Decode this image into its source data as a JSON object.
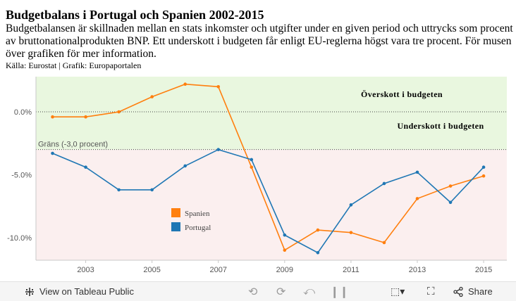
{
  "header": {
    "title": "Budgetbalans i Portugal och Spanien 2002-2015",
    "description": "Budgetbalansen är skillnaden mellan en stats inkomster och utgifter under en given period och uttrycks som procent av bruttonationalprodukten BNP. Ett underskott i budgeten får enligt EU-reglerna högst vara tre procent. För musen över grafiken för mer information.",
    "source": "Källa: Eurostat | Grafik: Europaportalen"
  },
  "chart_data": {
    "type": "line",
    "title": "Budgetbalans i Portugal och Spanien 2002-2015",
    "xlabel": "",
    "ylabel": "",
    "x": [
      2002,
      2003,
      2004,
      2005,
      2006,
      2007,
      2008,
      2009,
      2010,
      2011,
      2012,
      2013,
      2014,
      2015
    ],
    "xticks": [
      2003,
      2005,
      2007,
      2009,
      2011,
      2013,
      2015
    ],
    "xlim": [
      2001.5,
      2015.7
    ],
    "ylim": [
      -11.8,
      2.8
    ],
    "yticks": [
      0,
      -5,
      -10
    ],
    "ytick_labels": [
      "0.0%",
      "-5.0%",
      "-10.0%"
    ],
    "series": [
      {
        "name": "Spanien",
        "color": "#ff7f0e",
        "values": [
          -0.4,
          -0.4,
          0.0,
          1.2,
          2.2,
          2.0,
          -4.4,
          -11.0,
          -9.4,
          -9.6,
          -10.4,
          -6.9,
          -5.9,
          -5.1
        ]
      },
      {
        "name": "Portugal",
        "color": "#1f77b4",
        "values": [
          -3.3,
          -4.4,
          -6.2,
          -6.2,
          -4.3,
          -3.0,
          -3.8,
          -9.8,
          -11.2,
          -7.4,
          -5.7,
          -4.8,
          -7.2,
          -4.4
        ]
      }
    ],
    "threshold": {
      "value": -3.0,
      "label": "Gräns (-3,0 procent)"
    },
    "annotations": {
      "surplus": "Överskott i budgeten",
      "deficit": "Underskott i budgeten"
    },
    "legend_position": "center-left",
    "colors": {
      "surplus_band": "#e9f7df",
      "deficit_band": "#fbefef"
    }
  },
  "toolbar": {
    "view_label": "View on Tableau Public",
    "share_label": "Share",
    "icons": [
      "tableau-logo-icon",
      "undo-icon",
      "redo-icon",
      "revert-icon",
      "pause-icon",
      "download-icon",
      "fullscreen-icon",
      "share-icon"
    ]
  }
}
